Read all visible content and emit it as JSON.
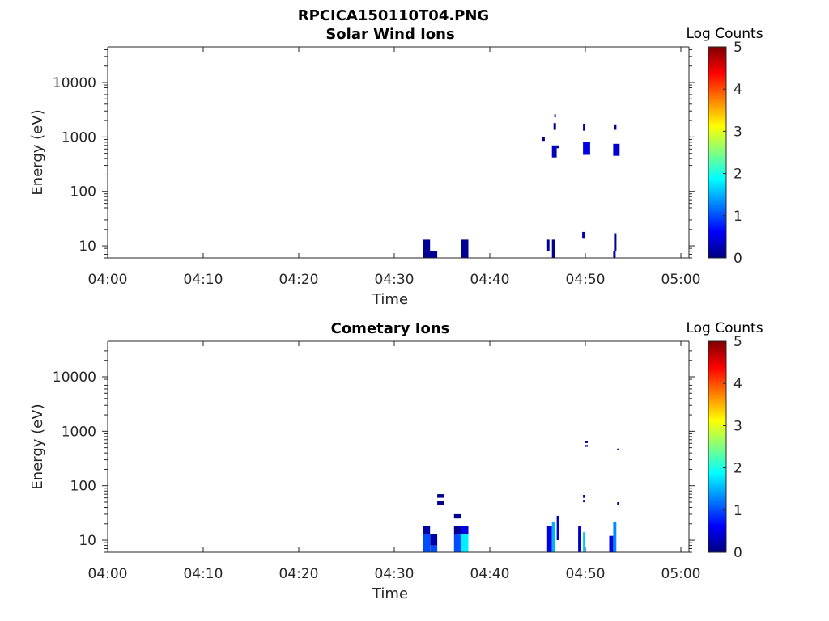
{
  "figure": {
    "suptitle": "RPCICA150110T04.PNG"
  },
  "colors": {
    "colormap": [
      "#00007f",
      "#0000ff",
      "#0080ff",
      "#00ffff",
      "#80ff80",
      "#ffff00",
      "#ff8000",
      "#ff0000",
      "#7f0000"
    ],
    "axis": "#262626",
    "background": "#ffffff"
  },
  "chart_data": [
    {
      "type": "heatmap",
      "title": "Solar Wind Ions",
      "xlabel": "Time",
      "ylabel": "Energy (eV)",
      "xticks": [
        "04:00",
        "04:10",
        "04:20",
        "04:30",
        "04:40",
        "04:50",
        "05:00"
      ],
      "xlim": [
        "04:00",
        "05:00"
      ],
      "yscale": "log",
      "yticks": [
        "10",
        "100",
        "1000",
        "10000"
      ],
      "ylim": [
        6,
        45000
      ],
      "colorbar": {
        "label": "Log Counts",
        "range": [
          0,
          5
        ],
        "ticks": [
          "0",
          "1",
          "2",
          "3",
          "4",
          "5"
        ]
      },
      "cells": [
        {
          "t0": "04:33:00",
          "t1": "04:33:45",
          "e0": 8,
          "e1": 13,
          "v": 0.1
        },
        {
          "t0": "04:33:00",
          "t1": "04:34:30",
          "e0": 6,
          "e1": 8,
          "v": 0.1
        },
        {
          "t0": "04:37:00",
          "t1": "04:37:45",
          "e0": 6,
          "e1": 13,
          "v": 0.1
        },
        {
          "t0": "04:45:30",
          "t1": "04:45:45",
          "e0": 850,
          "e1": 1000,
          "v": 0.1
        },
        {
          "t0": "04:46:00",
          "t1": "04:46:15",
          "e0": 8,
          "e1": 13,
          "v": 0.1
        },
        {
          "t0": "04:46:30",
          "t1": "04:46:50",
          "e0": 6,
          "e1": 13,
          "v": 0.1
        },
        {
          "t0": "04:46:30",
          "t1": "04:47:00",
          "e0": 420,
          "e1": 700,
          "v": 0.3
        },
        {
          "t0": "04:46:40",
          "t1": "04:46:55",
          "e0": 1350,
          "e1": 1800,
          "v": 0.1
        },
        {
          "t0": "04:46:45",
          "t1": "04:46:55",
          "e0": 2300,
          "e1": 2600,
          "v": 0.1
        },
        {
          "t0": "04:47:00",
          "t1": "04:47:15",
          "e0": 620,
          "e1": 700,
          "v": 0.1
        },
        {
          "t0": "04:49:40",
          "t1": "04:50:00",
          "e0": 14,
          "e1": 18,
          "v": 0.2
        },
        {
          "t0": "04:49:45",
          "t1": "04:50:00",
          "e0": 1300,
          "e1": 1750,
          "v": 0.2
        },
        {
          "t0": "04:49:45",
          "t1": "04:50:30",
          "e0": 470,
          "e1": 800,
          "v": 0.5
        },
        {
          "t0": "04:52:55",
          "t1": "04:53:10",
          "e0": 6,
          "e1": 8,
          "v": 0.1
        },
        {
          "t0": "04:53:05",
          "t1": "04:53:15",
          "e0": 8,
          "e1": 17,
          "v": 0.1
        },
        {
          "t0": "04:53:00",
          "t1": "04:53:15",
          "e0": 1350,
          "e1": 1700,
          "v": 0.1
        },
        {
          "t0": "04:52:55",
          "t1": "04:53:35",
          "e0": 450,
          "e1": 750,
          "v": 0.4
        }
      ]
    },
    {
      "type": "heatmap",
      "title": "Cometary Ions",
      "xlabel": "Time",
      "ylabel": "Energy (eV)",
      "xticks": [
        "04:00",
        "04:10",
        "04:20",
        "04:30",
        "04:40",
        "04:50",
        "05:00"
      ],
      "xlim": [
        "04:00",
        "05:00"
      ],
      "yscale": "log",
      "yticks": [
        "10",
        "100",
        "1000",
        "10000"
      ],
      "ylim": [
        6,
        45000
      ],
      "colorbar": {
        "label": "Log Counts",
        "range": [
          0,
          5
        ],
        "ticks": [
          "0",
          "1",
          "2",
          "3",
          "4",
          "5"
        ]
      },
      "cells": [
        {
          "t0": "04:33:00",
          "t1": "04:33:45",
          "e0": 13,
          "e1": 18,
          "v": 0.2
        },
        {
          "t0": "04:33:00",
          "t1": "04:33:45",
          "e0": 6,
          "e1": 13,
          "v": 1.0
        },
        {
          "t0": "04:33:45",
          "t1": "04:34:30",
          "e0": 8,
          "e1": 13,
          "v": 0.2
        },
        {
          "t0": "04:33:45",
          "t1": "04:34:30",
          "e0": 6,
          "e1": 8,
          "v": 1.0
        },
        {
          "t0": "04:34:30",
          "t1": "04:35:15",
          "e0": 60,
          "e1": 70,
          "v": 0.1
        },
        {
          "t0": "04:34:30",
          "t1": "04:35:15",
          "e0": 45,
          "e1": 52,
          "v": 0.1
        },
        {
          "t0": "04:36:15",
          "t1": "04:37:00",
          "e0": 25,
          "e1": 30,
          "v": 0.1
        },
        {
          "t0": "04:36:15",
          "t1": "04:37:00",
          "e0": 13,
          "e1": 18,
          "v": 0.1
        },
        {
          "t0": "04:36:15",
          "t1": "04:37:00",
          "e0": 6,
          "e1": 13,
          "v": 1.0
        },
        {
          "t0": "04:37:00",
          "t1": "04:37:45",
          "e0": 13,
          "e1": 18,
          "v": 0.5
        },
        {
          "t0": "04:37:00",
          "t1": "04:37:45",
          "e0": 6,
          "e1": 13,
          "v": 1.8
        },
        {
          "t0": "04:46:00",
          "t1": "04:46:30",
          "e0": 6,
          "e1": 18,
          "v": 0.5
        },
        {
          "t0": "04:46:30",
          "t1": "04:46:50",
          "e0": 6,
          "e1": 22,
          "v": 1.5
        },
        {
          "t0": "04:47:00",
          "t1": "04:47:15",
          "e0": 10,
          "e1": 28,
          "v": 0.4
        },
        {
          "t0": "04:49:15",
          "t1": "04:49:35",
          "e0": 6,
          "e1": 18,
          "v": 0.4
        },
        {
          "t0": "04:49:45",
          "t1": "04:50:00",
          "e0": 60,
          "e1": 68,
          "v": 0.1
        },
        {
          "t0": "04:49:45",
          "t1": "04:50:00",
          "e0": 50,
          "e1": 55,
          "v": 0.1
        },
        {
          "t0": "04:49:45",
          "t1": "04:50:00",
          "e0": 6,
          "e1": 14,
          "v": 1.6
        },
        {
          "t0": "04:50:00",
          "t1": "04:50:15",
          "e0": 520,
          "e1": 560,
          "v": 0.1
        },
        {
          "t0": "04:50:00",
          "t1": "04:50:15",
          "e0": 610,
          "e1": 650,
          "v": 0.1
        },
        {
          "t0": "04:52:30",
          "t1": "04:52:55",
          "e0": 6,
          "e1": 12,
          "v": 0.5
        },
        {
          "t0": "04:52:55",
          "t1": "04:53:15",
          "e0": 6,
          "e1": 22,
          "v": 1.3
        },
        {
          "t0": "04:53:20",
          "t1": "04:53:30",
          "e0": 44,
          "e1": 50,
          "v": 0.1
        },
        {
          "t0": "04:53:20",
          "t1": "04:53:30",
          "e0": 450,
          "e1": 480,
          "v": 0.1
        }
      ]
    }
  ]
}
